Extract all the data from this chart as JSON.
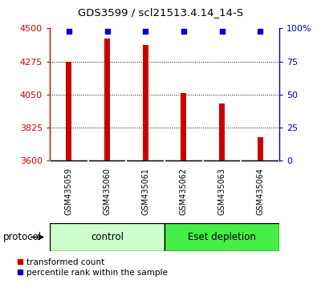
{
  "title": "GDS3599 / scl21513.4.14_14-S",
  "samples": [
    "GSM435059",
    "GSM435060",
    "GSM435061",
    "GSM435062",
    "GSM435063",
    "GSM435064"
  ],
  "transformed_counts": [
    4275,
    4430,
    4390,
    4060,
    3990,
    3760
  ],
  "percentile_ranks": [
    98,
    98,
    98,
    98,
    98,
    98
  ],
  "y_min": 3600,
  "y_max": 4500,
  "y_ticks": [
    3600,
    3825,
    4050,
    4275,
    4500
  ],
  "y_ticks_right": [
    0,
    25,
    50,
    75,
    100
  ],
  "y_ticks_right_labels": [
    "0",
    "25",
    "50",
    "75",
    "100%"
  ],
  "bar_color": "#cc0000",
  "dot_color": "#0000cc",
  "control_label": "control",
  "eset_label": "Eset depletion",
  "protocol_label": "protocol",
  "legend_bar_label": "transformed count",
  "legend_dot_label": "percentile rank within the sample",
  "control_color": "#ccffcc",
  "eset_color": "#44ee44",
  "left_axis_color": "#cc0000",
  "right_axis_color": "#0000cc",
  "bar_width": 0.15,
  "label_area_bg": "#cccccc",
  "background_color": "#ffffff"
}
